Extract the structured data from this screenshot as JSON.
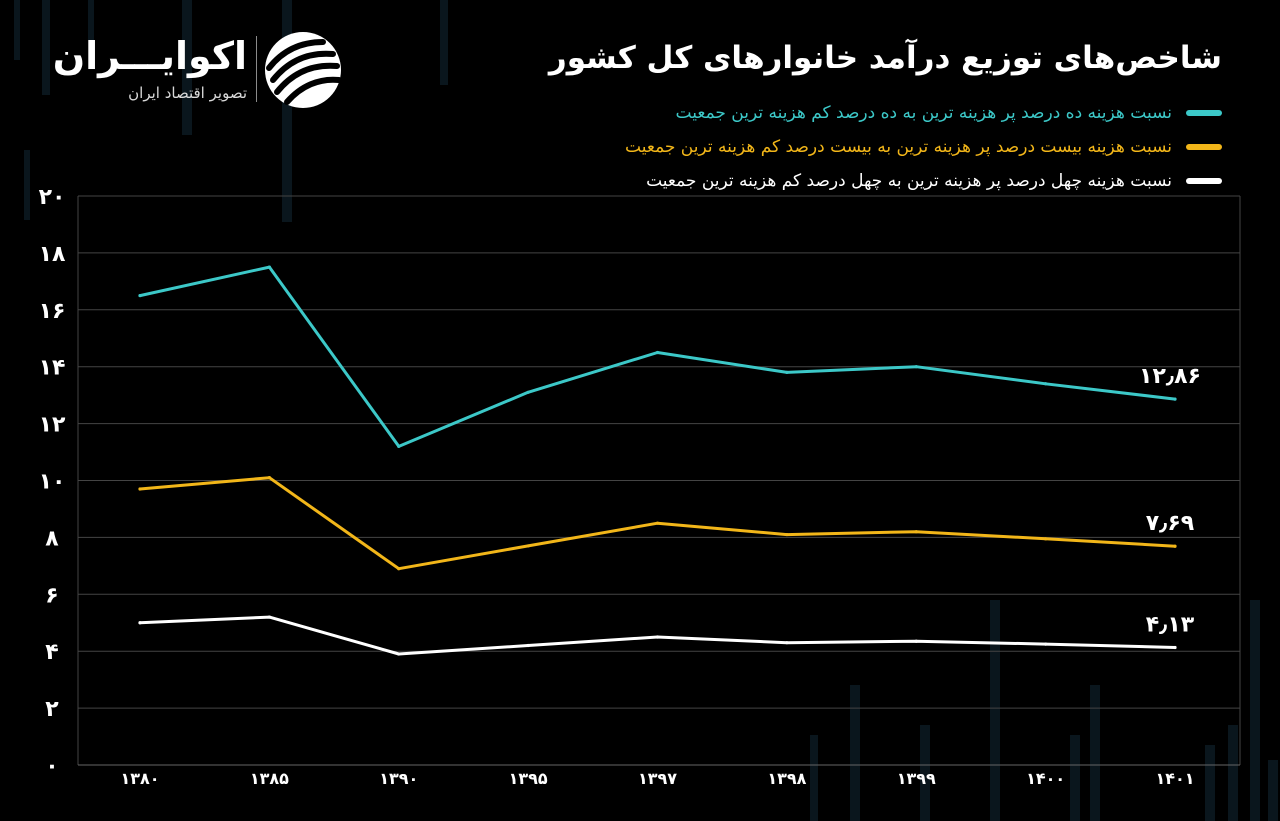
{
  "brand": {
    "name": "اکوایـــران",
    "tagline": "تصویر اقتصاد ایران"
  },
  "chart_data": {
    "type": "line",
    "title": "شاخص‌های توزیع درآمد خانوارهای کل کشور",
    "xlabel": "",
    "ylabel": "",
    "categories": [
      "۱۳۸۰",
      "۱۳۸۵",
      "۱۳۹۰",
      "۱۳۹۵",
      "۱۳۹۷",
      "۱۳۹۸",
      "۱۳۹۹",
      "۱۴۰۰",
      "۱۴۰۱"
    ],
    "ylim": [
      0,
      20
    ],
    "yticks": [
      0,
      2,
      4,
      6,
      8,
      10,
      12,
      14,
      16,
      18,
      20
    ],
    "ytick_labels": [
      "۰",
      "۲",
      "۴",
      "۶",
      "۸",
      "۱۰",
      "۱۲",
      "۱۴",
      "۱۶",
      "۱۸",
      "۲۰"
    ],
    "grid": true,
    "legend_position": "top-right",
    "series": [
      {
        "name": "نسبت هزینه ده درصد پر هزینه ترین به ده درصد کم هزینه ترین جمعیت",
        "color": "#3cc8c8",
        "values": [
          16.5,
          17.5,
          11.2,
          13.1,
          14.5,
          13.8,
          14.0,
          13.4,
          12.86
        ],
        "end_label": "۱۲٫۸۶"
      },
      {
        "name": "نسبت هزینه بیست درصد پر هزینه ترین به بیست درصد کم هزینه ترین جمعیت",
        "color": "#f2b619",
        "values": [
          9.7,
          10.1,
          6.9,
          7.7,
          8.5,
          8.1,
          8.2,
          7.95,
          7.69
        ],
        "end_label": "۷٫۶۹"
      },
      {
        "name": "نسبت هزینه چهل درصد پر هزینه ترین به چهل درصد کم هزینه ترین جمعیت",
        "color": "#ffffff",
        "values": [
          5.0,
          5.2,
          3.9,
          4.2,
          4.5,
          4.3,
          4.35,
          4.25,
          4.13
        ],
        "end_label": "۴٫۱۳"
      }
    ]
  }
}
